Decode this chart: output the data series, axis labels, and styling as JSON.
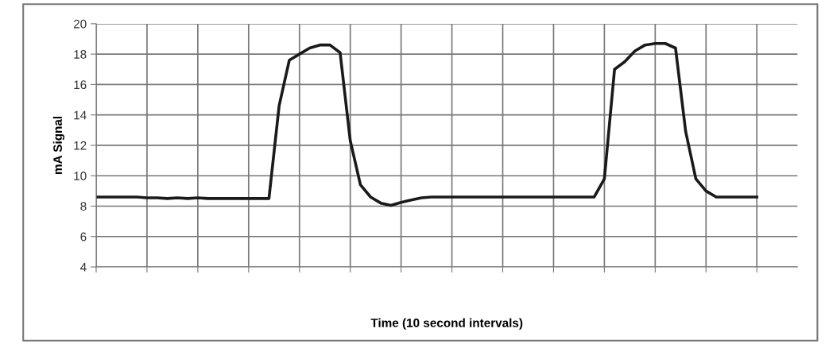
{
  "chart_data": {
    "type": "line",
    "xlabel": "Time (10 second intervals)",
    "ylabel": "mA Signal",
    "categories": [
      null,
      null,
      null,
      null,
      null,
      null,
      null,
      null,
      null,
      null,
      null,
      null,
      null,
      null,
      null,
      null,
      null,
      null,
      null,
      null,
      null,
      null,
      null,
      null,
      null,
      null,
      null,
      null,
      null,
      null,
      null,
      null,
      null,
      null,
      null,
      null,
      null,
      null,
      null,
      null,
      null,
      null,
      null,
      null,
      null,
      null,
      null,
      null,
      null,
      null,
      null,
      null,
      null,
      null,
      null,
      null,
      null,
      null,
      null,
      null,
      null,
      null,
      null,
      null,
      null,
      null
    ],
    "series": [
      {
        "color": "#1a1a1a",
        "values": [
          8.6,
          8.6,
          8.6,
          8.6,
          8.6,
          8.55,
          8.55,
          8.5,
          8.55,
          8.5,
          8.55,
          8.5,
          8.5,
          8.5,
          8.5,
          8.5,
          8.5,
          8.5,
          14.6,
          17.6,
          18.0,
          18.4,
          18.6,
          18.6,
          18.1,
          12.3,
          9.4,
          8.6,
          8.2,
          8.05,
          8.25,
          8.4,
          8.55,
          8.6,
          8.6,
          8.6,
          8.6,
          8.6,
          8.6,
          8.6,
          8.6,
          8.6,
          8.6,
          8.6,
          8.6,
          8.6,
          8.6,
          8.6,
          8.6,
          8.6,
          9.8,
          17.0,
          17.5,
          18.2,
          18.6,
          18.7,
          18.7,
          18.4,
          12.9,
          9.8,
          9.0,
          8.6,
          8.6,
          8.6,
          8.6,
          8.6
        ]
      }
    ],
    "ylim": [
      4,
      20
    ],
    "yticks": [
      4,
      6,
      8,
      10,
      12,
      14,
      16,
      18,
      20
    ],
    "grid": true,
    "line_style": "solid",
    "marker": "none"
  }
}
